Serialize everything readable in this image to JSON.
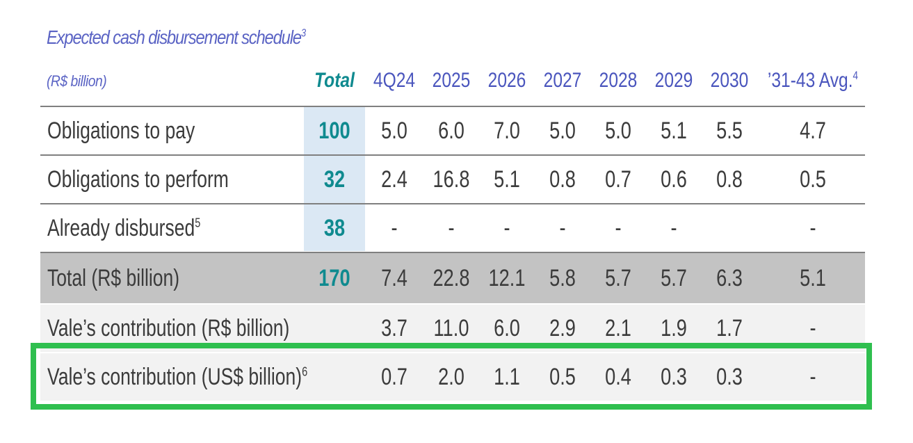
{
  "header": {
    "title": "Expected cash disbursement schedule",
    "title_note": "3",
    "unit": "(R$ billion)",
    "columns": [
      "Total",
      "4Q24",
      "2025",
      "2026",
      "2027",
      "2028",
      "2029",
      "2030",
      "’31-43 Avg."
    ],
    "last_col_note": "4"
  },
  "rows": [
    {
      "label": "Obligations to pay",
      "note": "",
      "values": [
        "100",
        "5.0",
        "6.0",
        "7.0",
        "5.0",
        "5.0",
        "5.1",
        "5.5",
        "4.7"
      ]
    },
    {
      "label": "Obligations to perform",
      "note": "",
      "values": [
        "32",
        "2.4",
        "16.8",
        "5.1",
        "0.8",
        "0.7",
        "0.6",
        "0.8",
        "0.5"
      ]
    },
    {
      "label": "Already disbursed",
      "note": "5",
      "values": [
        "38",
        "-",
        "-",
        "-",
        "-",
        "-",
        "-",
        "",
        "-"
      ]
    },
    {
      "label": "Total (R$ billion)",
      "note": "",
      "values": [
        "170",
        "7.4",
        "22.8",
        "12.1",
        "5.8",
        "5.7",
        "5.7",
        "6.3",
        "5.1"
      ]
    },
    {
      "label": "Vale’s contribution (R$ billion)",
      "note": "",
      "values": [
        "",
        "3.7",
        "11.0",
        "6.0",
        "2.9",
        "2.1",
        "1.9",
        "1.7",
        "-"
      ]
    },
    {
      "label": "Vale’s contribution (US$ billion)",
      "note": "6",
      "values": [
        "",
        "0.7",
        "2.0",
        "1.1",
        "0.5",
        "0.4",
        "0.3",
        "0.3",
        "-"
      ]
    }
  ],
  "colors": {
    "accent_blue": "#4a55bd",
    "total_teal": "#0f8a8f",
    "total_row_gray": "#c3c3c3",
    "highlight_green": "#2fbf4f"
  }
}
